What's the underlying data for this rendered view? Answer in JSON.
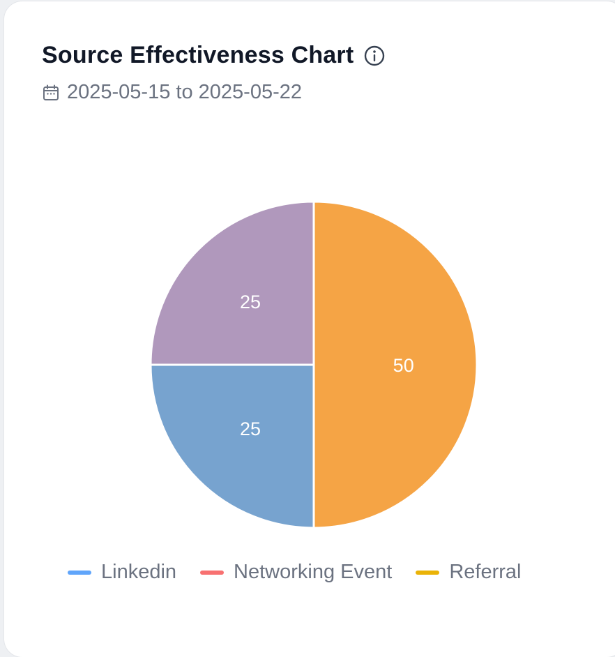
{
  "card": {
    "title": "Source Effectiveness Chart",
    "date_range": "2025-05-15 to 2025-05-22",
    "info_icon": "info-icon",
    "calendar_icon": "calendar-icon"
  },
  "legend": [
    {
      "label": "Linkedin",
      "color": "#60a5fa"
    },
    {
      "label": "Networking Event",
      "color": "#f87171"
    },
    {
      "label": "Referral",
      "color": "#eab308"
    }
  ],
  "chart_data": {
    "type": "pie",
    "title": "",
    "categories": [
      "Referral",
      "Linkedin",
      "Networking Event"
    ],
    "values": [
      50,
      25,
      25
    ],
    "slice_labels": [
      "50",
      "25",
      "25"
    ],
    "slice_colors": [
      "#f5a445",
      "#77a3cf",
      "#b098bc"
    ],
    "legend_position": "bottom"
  }
}
